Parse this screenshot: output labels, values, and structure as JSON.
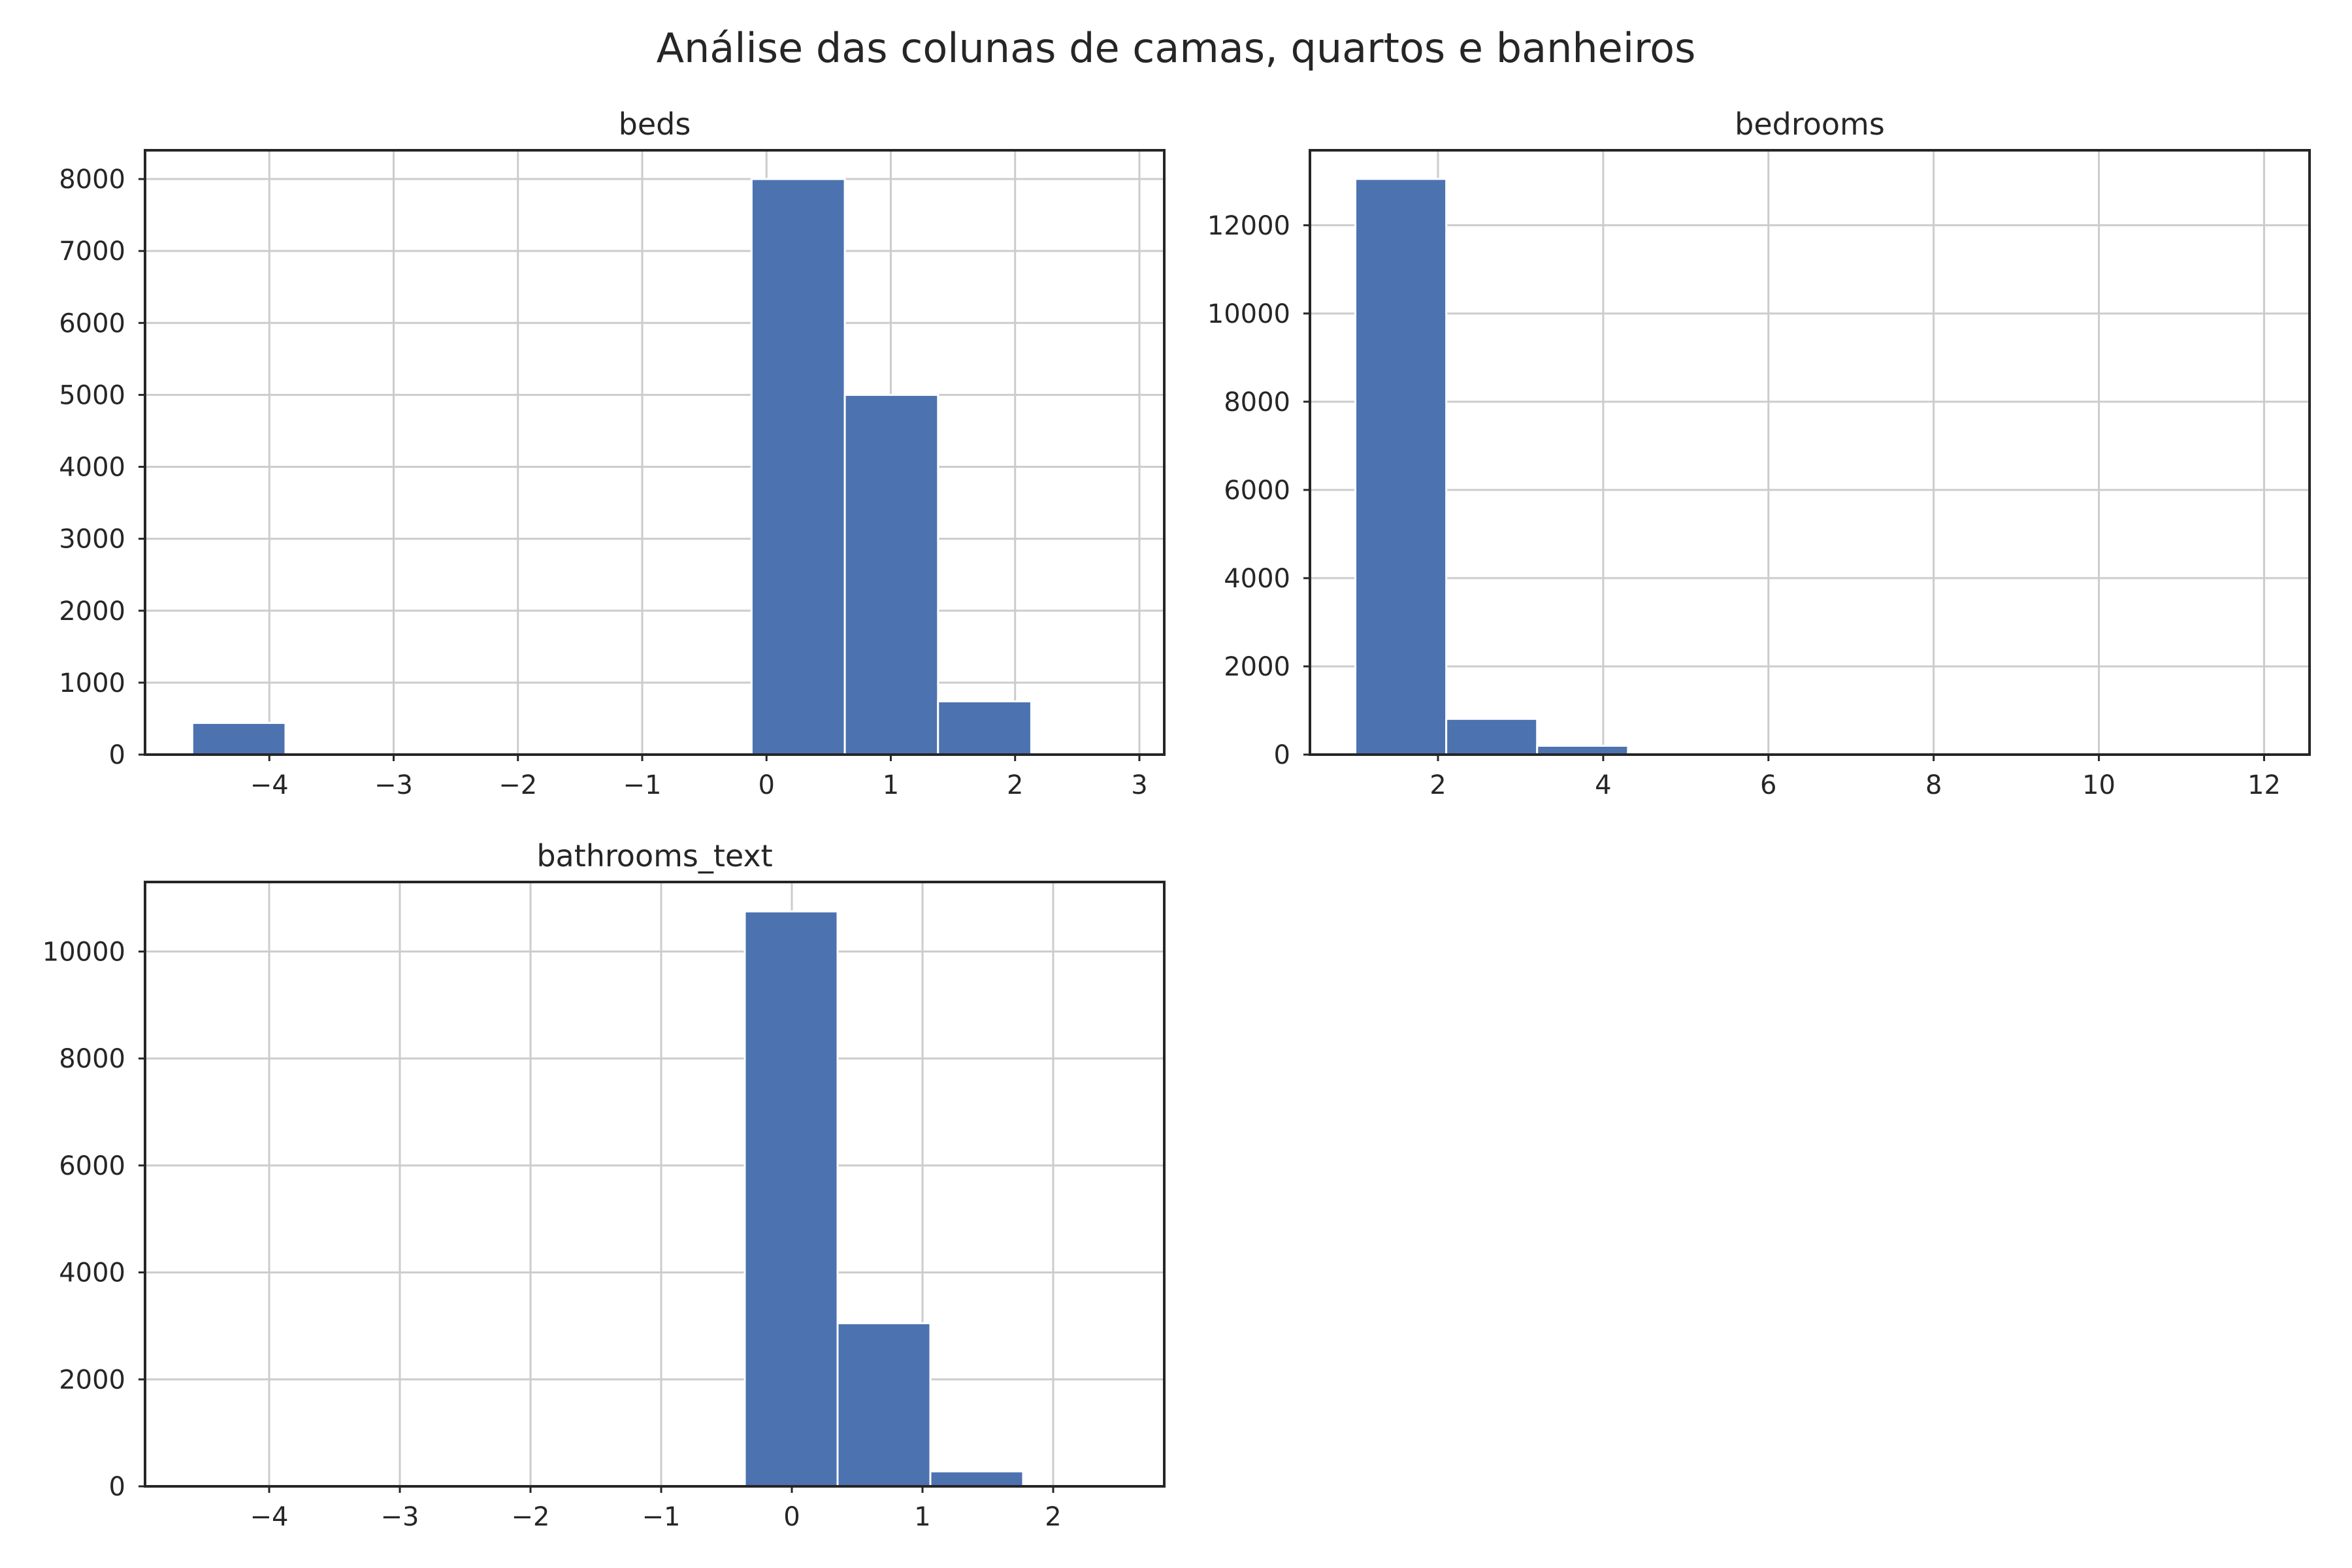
{
  "figure": {
    "title": "Análise das colunas de camas, quartos e banheiros"
  },
  "chart_data": [
    {
      "type": "bar",
      "title": "beds",
      "xlabel": "",
      "ylabel": "",
      "grid": true,
      "xlim": [
        -5.0,
        3.2
      ],
      "ylim": [
        0,
        8400
      ],
      "xticks": [
        -4,
        -3,
        -2,
        -1,
        0,
        1,
        2,
        3
      ],
      "yticks": [
        0,
        1000,
        2000,
        3000,
        4000,
        5000,
        6000,
        7000,
        8000
      ],
      "bin_edges": [
        -4.62,
        -3.87,
        -3.12,
        -2.37,
        -1.62,
        -0.87,
        -0.12,
        0.63,
        1.38,
        2.13,
        2.88
      ],
      "values": [
        440,
        0,
        0,
        0,
        0,
        0,
        8000,
        5000,
        740,
        0
      ]
    },
    {
      "type": "bar",
      "title": "bedrooms",
      "xlabel": "",
      "ylabel": "",
      "grid": true,
      "xlim": [
        0.45,
        12.55
      ],
      "ylim": [
        0,
        13700
      ],
      "xticks": [
        2,
        4,
        6,
        8,
        10,
        12
      ],
      "yticks": [
        0,
        2000,
        4000,
        6000,
        8000,
        10000,
        12000
      ],
      "bin_edges": [
        1.0,
        2.1,
        3.2,
        4.3,
        5.4,
        6.5,
        7.6,
        8.7,
        9.8,
        10.9,
        12.0
      ],
      "values": [
        13050,
        810,
        200,
        40,
        10,
        5,
        3,
        2,
        1,
        1
      ]
    },
    {
      "type": "bar",
      "title": "bathrooms_text",
      "xlabel": "",
      "ylabel": "",
      "grid": true,
      "xlim": [
        -4.95,
        2.85
      ],
      "ylim": [
        0,
        11300
      ],
      "xticks": [
        -4,
        -3,
        -2,
        -1,
        0,
        1,
        2
      ],
      "yticks": [
        0,
        2000,
        4000,
        6000,
        8000,
        10000
      ],
      "bin_edges": [
        -4.62,
        -3.91,
        -3.2,
        -2.49,
        -1.78,
        -1.07,
        -0.36,
        0.35,
        1.06,
        1.77,
        2.48
      ],
      "values": [
        0,
        0,
        0,
        0,
        0,
        0,
        10750,
        3050,
        280,
        0
      ]
    }
  ]
}
